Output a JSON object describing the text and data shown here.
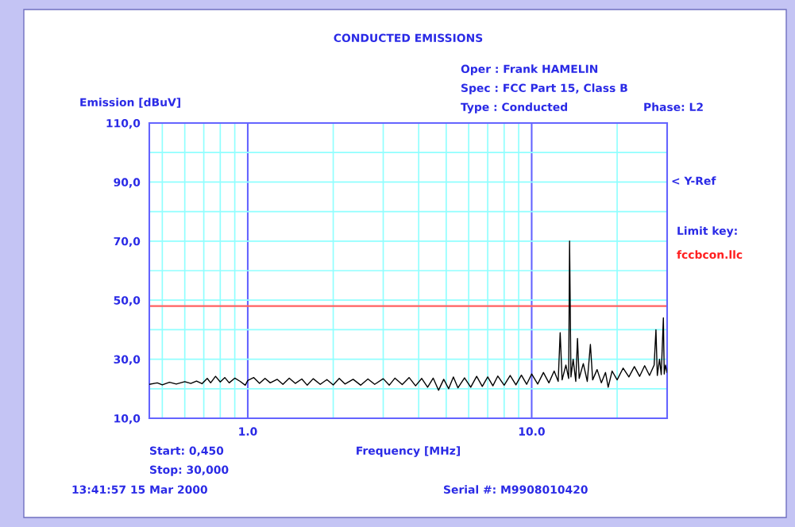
{
  "chart_data": {
    "type": "line",
    "title": "CONDUCTED EMISSIONS",
    "xlabel": "Frequency [MHz]",
    "ylabel": "Emission [dBuV]",
    "log": "x",
    "grid": true,
    "marker": "none",
    "line_style": "solid",
    "xlim": [
      0.45,
      30
    ],
    "ylim": [
      10,
      110
    ],
    "xticks": [
      {
        "value": 0.5,
        "label": null
      },
      {
        "value": 0.6,
        "label": null
      },
      {
        "value": 0.7,
        "label": null
      },
      {
        "value": 0.8,
        "label": null
      },
      {
        "value": 0.9,
        "label": null
      },
      {
        "value": 1,
        "label": "1.0"
      },
      {
        "value": 2,
        "label": null
      },
      {
        "value": 3,
        "label": null
      },
      {
        "value": 4,
        "label": null
      },
      {
        "value": 5,
        "label": null
      },
      {
        "value": 6,
        "label": null
      },
      {
        "value": 7,
        "label": null
      },
      {
        "value": 8,
        "label": null
      },
      {
        "value": 9,
        "label": null
      },
      {
        "value": 10,
        "label": "10.0"
      },
      {
        "value": 20,
        "label": null
      }
    ],
    "yticks": [
      {
        "value": 10,
        "label": "10,0"
      },
      {
        "value": 20,
        "label": null
      },
      {
        "value": 30,
        "label": "30,0"
      },
      {
        "value": 40,
        "label": null
      },
      {
        "value": 50,
        "label": "50,0"
      },
      {
        "value": 60,
        "label": null
      },
      {
        "value": 70,
        "label": "70,0"
      },
      {
        "value": 80,
        "label": null
      },
      {
        "value": 90,
        "label": "90,0"
      },
      {
        "value": 100,
        "label": null
      },
      {
        "value": 110,
        "label": "110,0"
      }
    ],
    "ref_lines": [
      {
        "axis": "y",
        "value": 48,
        "color": "#ff6060",
        "line_style": "solid"
      }
    ],
    "annotations": [
      "Oper : Frank HAMELIN",
      "Spec : FCC Part 15, Class B",
      "Type : Conducted",
      "Phase: L2",
      "Limit key:",
      "Start: 0,450",
      "Stop: 30,000",
      "13:41:57 15 Mar 2000",
      "Serial #: M9908010420",
      "< Y-Ref",
      "fccbcon.llc"
    ],
    "series": [
      {
        "color": "#000000",
        "x": [
          0.45,
          0.48,
          0.5,
          0.53,
          0.56,
          0.6,
          0.63,
          0.66,
          0.69,
          0.72,
          0.74,
          0.77,
          0.8,
          0.83,
          0.86,
          0.9,
          0.94,
          0.98,
          1.0,
          1.05,
          1.1,
          1.15,
          1.2,
          1.27,
          1.33,
          1.4,
          1.47,
          1.55,
          1.62,
          1.7,
          1.8,
          1.9,
          2.0,
          2.1,
          2.2,
          2.35,
          2.5,
          2.65,
          2.8,
          3.0,
          3.15,
          3.3,
          3.5,
          3.7,
          3.9,
          4.1,
          4.3,
          4.5,
          4.7,
          4.9,
          5.1,
          5.3,
          5.5,
          5.8,
          6.1,
          6.4,
          6.7,
          7.0,
          7.3,
          7.6,
          8.0,
          8.4,
          8.8,
          9.2,
          9.6,
          10.0,
          10.5,
          11.0,
          11.5,
          12.0,
          12.4,
          12.6,
          12.8,
          13.2,
          13.5,
          13.6,
          13.75,
          14.0,
          14.3,
          14.5,
          14.7,
          15.2,
          15.7,
          16.1,
          16.4,
          17.0,
          17.6,
          18.2,
          18.6,
          19.2,
          20.0,
          21.0,
          22.0,
          23.0,
          24.0,
          25.0,
          26.0,
          27.0,
          27.4,
          27.7,
          28.2,
          28.6,
          29.1,
          29.3,
          29.6,
          30.0
        ],
        "values": [
          21.5,
          22,
          21.3,
          22.2,
          21.6,
          22.4,
          21.8,
          22.6,
          21.7,
          23.5,
          22,
          24.2,
          22.3,
          23.8,
          22,
          23.6,
          22.5,
          21.2,
          22.8,
          23.8,
          21.8,
          23.5,
          22,
          23.2,
          21.5,
          23.6,
          21.8,
          23.3,
          21.2,
          23.4,
          21.5,
          23.1,
          21.3,
          23.5,
          21.6,
          23.2,
          21.2,
          23.3,
          21.5,
          23.4,
          21.2,
          23.6,
          21.4,
          23.8,
          21,
          23.5,
          20.5,
          23.6,
          19.5,
          23.2,
          20,
          24,
          20.3,
          23.7,
          20.5,
          24.2,
          20.8,
          24,
          21,
          24.3,
          21.2,
          24.5,
          21.3,
          24.6,
          21.5,
          25,
          21.6,
          25.5,
          22,
          26,
          22.5,
          39,
          23,
          28,
          23.5,
          70,
          24,
          30,
          22.5,
          37,
          23.5,
          28.5,
          22.5,
          35,
          23,
          26.5,
          22,
          25.5,
          20.5,
          26,
          23,
          27,
          24,
          27.5,
          24.2,
          27.8,
          24.5,
          28,
          40,
          24.5,
          30,
          24.8,
          44,
          25,
          28,
          25.5
        ]
      }
    ]
  }
}
